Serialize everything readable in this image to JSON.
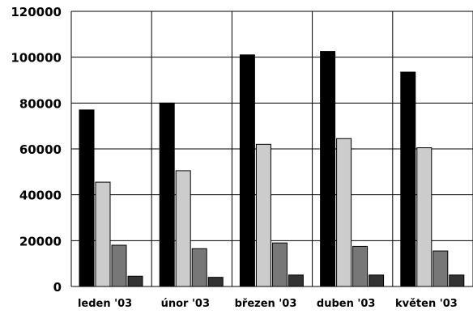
{
  "chart_data": {
    "type": "bar",
    "categories": [
      "leden '03",
      "únor '03",
      "březen '03",
      "duben '03",
      "květen '03"
    ],
    "series": [
      {
        "values": [
          77000,
          80000,
          101000,
          102500,
          93500
        ],
        "color": "#000000"
      },
      {
        "values": [
          45500,
          50500,
          62000,
          64500,
          60500
        ],
        "color": "#cccccc"
      },
      {
        "values": [
          18000,
          16500,
          19000,
          17500,
          15500
        ],
        "color": "#777777"
      },
      {
        "values": [
          4500,
          4000,
          5000,
          5000,
          5000
        ],
        "color": "#333333"
      }
    ],
    "yticks": [
      0,
      20000,
      40000,
      60000,
      80000,
      100000,
      120000
    ],
    "ylim": [
      0,
      120000
    ],
    "grid": true,
    "title": "",
    "xlabel": "",
    "ylabel": ""
  }
}
